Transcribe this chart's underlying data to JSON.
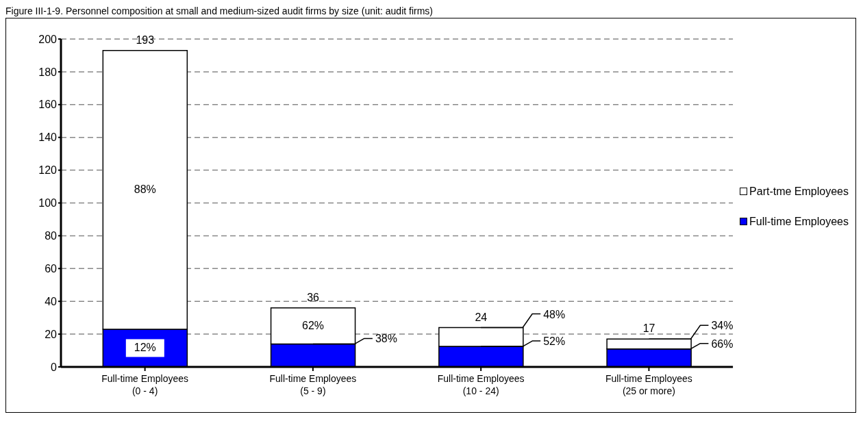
{
  "chart_data": {
    "type": "bar",
    "title": "Figure III-1-9. Personnel composition at small and medium-sized audit firms by size (unit: audit firms)",
    "categories": [
      "Full-time Employees (0 - 4)",
      "Full-time Employees (5 - 9)",
      "Full-time Employees (10 - 24)",
      "Full-time Employees (25 or more)"
    ],
    "series": [
      {
        "name": "Full-time Employees",
        "color": "#0000ff",
        "values": [
          23,
          14,
          12.5,
          11
        ]
      },
      {
        "name": "Part-tme Employees",
        "color": "#ffffff",
        "values": [
          170,
          22,
          11.5,
          6
        ]
      }
    ],
    "annotations": [
      "12%",
      "88%",
      {
        "text": "38%",
        "x": "Full-time Employees (5 - 9)",
        "y": 14
      },
      "62%",
      {
        "text": "52%",
        "x": "Full-time Employees (10 - 24)",
        "y": 12.5
      },
      {
        "text": "48%",
        "x": "Full-time Employees (10 - 24)",
        "y": 24
      },
      {
        "text": "66%",
        "x": "Full-time Employees (25 or more)",
        "y": 11
      },
      {
        "text": "34%",
        "x": "Full-time Employees (25 or more)",
        "y": 17
      }
    ],
    "stacked": true,
    "totals": [
      "193",
      "36",
      "24",
      "17"
    ],
    "ylim": [
      0,
      200
    ],
    "yticks": [
      0,
      20,
      40,
      60,
      80,
      100,
      120,
      140,
      160,
      180,
      200
    ],
    "grid": "y",
    "legend": "right"
  }
}
